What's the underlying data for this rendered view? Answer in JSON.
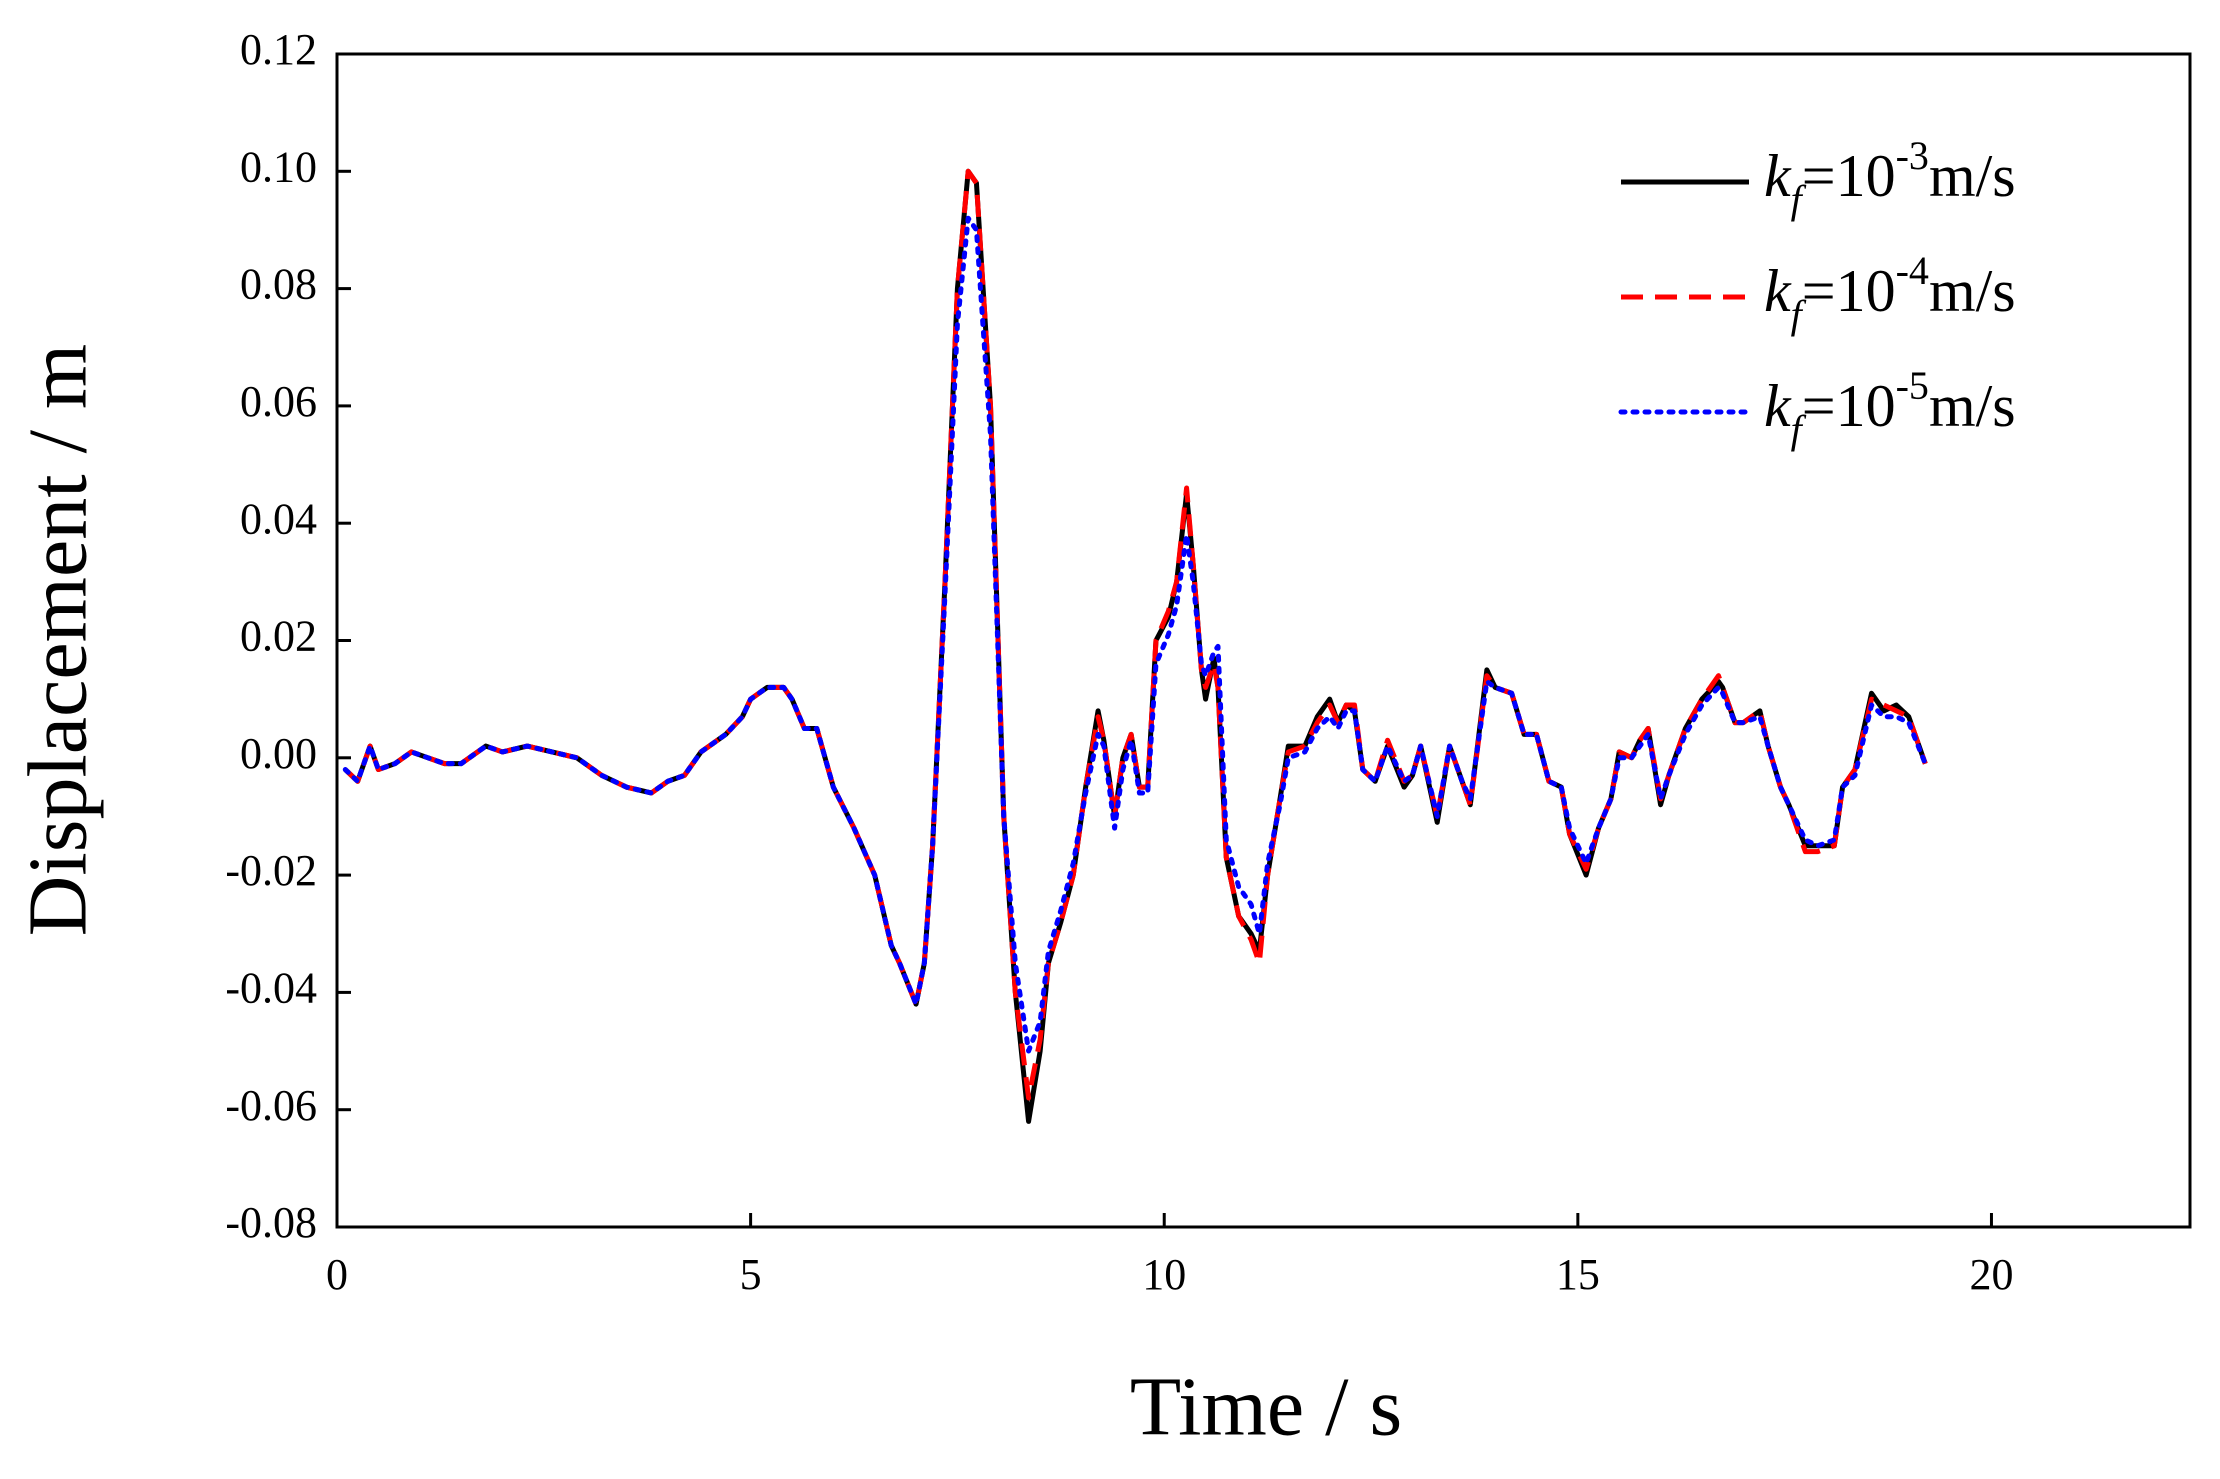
{
  "chart_data": {
    "type": "line",
    "xlabel": "Time / s",
    "ylabel": "Displacement / m",
    "x": [
      0.1,
      0.25,
      0.4,
      0.5,
      0.7,
      0.9,
      1.1,
      1.3,
      1.5,
      1.8,
      2.0,
      2.3,
      2.6,
      2.9,
      3.2,
      3.5,
      3.8,
      4.0,
      4.2,
      4.4,
      4.7,
      4.9,
      5.0,
      5.2,
      5.4,
      5.5,
      5.65,
      5.8,
      6.0,
      6.25,
      6.5,
      6.7,
      6.8,
      7.0,
      7.1,
      7.2,
      7.35,
      7.5,
      7.63,
      7.73,
      7.9,
      8.06,
      8.2,
      8.36,
      8.5,
      8.6,
      8.75,
      8.9,
      9.05,
      9.2,
      9.27,
      9.4,
      9.5,
      9.6,
      9.7,
      9.8,
      9.9,
      10.05,
      10.15,
      10.27,
      10.35,
      10.45,
      10.5,
      10.6,
      10.65,
      10.75,
      10.9,
      11.05,
      11.15,
      11.25,
      11.4,
      11.5,
      11.7,
      11.85,
      12.0,
      12.1,
      12.2,
      12.3,
      12.4,
      12.55,
      12.7,
      12.9,
      13.0,
      13.1,
      13.3,
      13.45,
      13.6,
      13.7,
      13.9,
      14.0,
      14.2,
      14.35,
      14.5,
      14.65,
      14.8,
      14.9,
      15.1,
      15.25,
      15.4,
      15.5,
      15.65,
      15.75,
      15.85,
      16.0,
      16.1,
      16.3,
      16.5,
      16.7,
      16.75,
      16.9,
      17.0,
      17.2,
      17.3,
      17.45,
      17.55,
      17.75,
      17.9,
      18.1,
      18.2,
      18.35,
      18.55,
      18.7,
      18.85,
      19.0,
      19.2
    ],
    "series": [
      {
        "name": "kf=10-3m/s",
        "color": "#000000",
        "line_style": "solid",
        "values": [
          -0.002,
          -0.004,
          0.002,
          -0.002,
          -0.001,
          0.001,
          0.0,
          -0.001,
          -0.001,
          0.002,
          0.001,
          0.002,
          0.001,
          0.0,
          -0.003,
          -0.005,
          -0.006,
          -0.004,
          -0.003,
          0.001,
          0.004,
          0.007,
          0.01,
          0.012,
          0.012,
          0.01,
          0.005,
          0.005,
          -0.005,
          -0.012,
          -0.02,
          -0.032,
          -0.035,
          -0.042,
          -0.035,
          -0.015,
          0.03,
          0.08,
          0.1,
          0.098,
          0.06,
          -0.01,
          -0.04,
          -0.062,
          -0.05,
          -0.035,
          -0.028,
          -0.02,
          -0.005,
          0.008,
          0.003,
          -0.01,
          0.0,
          0.004,
          -0.005,
          -0.005,
          0.02,
          0.024,
          0.03,
          0.045,
          0.033,
          0.015,
          0.01,
          0.017,
          0.012,
          -0.017,
          -0.027,
          -0.03,
          -0.033,
          -0.02,
          -0.007,
          0.002,
          0.002,
          0.007,
          0.01,
          0.006,
          0.009,
          0.008,
          -0.002,
          -0.004,
          0.002,
          -0.005,
          -0.003,
          0.002,
          -0.011,
          0.002,
          -0.004,
          -0.008,
          0.015,
          0.012,
          0.011,
          0.004,
          0.004,
          -0.004,
          -0.005,
          -0.013,
          -0.02,
          -0.012,
          -0.007,
          0.001,
          0.0,
          0.003,
          0.005,
          -0.008,
          -0.003,
          0.005,
          0.01,
          0.013,
          0.012,
          0.006,
          0.006,
          0.008,
          0.002,
          -0.005,
          -0.008,
          -0.015,
          -0.015,
          -0.015,
          -0.005,
          -0.002,
          0.011,
          0.008,
          0.009,
          0.007,
          -0.001
        ]
      },
      {
        "name": "kf=10-4m/s",
        "color": "#ff0000",
        "line_style": "dashed",
        "values": [
          -0.002,
          -0.004,
          0.002,
          -0.002,
          -0.001,
          0.001,
          0.0,
          -0.001,
          -0.001,
          0.002,
          0.001,
          0.002,
          0.001,
          0.0,
          -0.003,
          -0.005,
          -0.006,
          -0.004,
          -0.003,
          0.001,
          0.004,
          0.007,
          0.01,
          0.012,
          0.012,
          0.01,
          0.005,
          0.005,
          -0.005,
          -0.012,
          -0.02,
          -0.032,
          -0.035,
          -0.042,
          -0.035,
          -0.015,
          0.03,
          0.08,
          0.1,
          0.098,
          0.06,
          -0.01,
          -0.04,
          -0.058,
          -0.048,
          -0.035,
          -0.028,
          -0.02,
          -0.005,
          0.007,
          0.003,
          -0.01,
          0.0,
          0.004,
          -0.005,
          -0.005,
          0.02,
          0.025,
          0.03,
          0.046,
          0.033,
          0.015,
          0.012,
          0.016,
          0.012,
          -0.017,
          -0.027,
          -0.031,
          -0.035,
          -0.02,
          -0.007,
          0.001,
          0.002,
          0.006,
          0.009,
          0.006,
          0.009,
          0.009,
          -0.002,
          -0.004,
          0.003,
          -0.004,
          -0.003,
          0.002,
          -0.01,
          0.002,
          -0.004,
          -0.008,
          0.014,
          0.012,
          0.011,
          0.004,
          0.004,
          -0.004,
          -0.005,
          -0.013,
          -0.019,
          -0.012,
          -0.007,
          0.001,
          0.0,
          0.003,
          0.005,
          -0.007,
          -0.003,
          0.005,
          0.01,
          0.014,
          0.012,
          0.006,
          0.006,
          0.008,
          0.002,
          -0.005,
          -0.008,
          -0.016,
          -0.016,
          -0.015,
          -0.005,
          -0.002,
          0.01,
          0.009,
          0.008,
          0.007,
          -0.001
        ]
      },
      {
        "name": "kf=10-5m/s",
        "color": "#0000ff",
        "line_style": "dotted",
        "values": [
          -0.002,
          -0.004,
          0.002,
          -0.002,
          -0.001,
          0.001,
          0.0,
          -0.001,
          -0.001,
          0.002,
          0.001,
          0.002,
          0.001,
          0.0,
          -0.003,
          -0.005,
          -0.006,
          -0.004,
          -0.003,
          0.001,
          0.004,
          0.007,
          0.01,
          0.012,
          0.012,
          0.01,
          0.005,
          0.005,
          -0.005,
          -0.012,
          -0.02,
          -0.032,
          -0.035,
          -0.042,
          -0.035,
          -0.015,
          0.028,
          0.074,
          0.092,
          0.09,
          0.055,
          -0.01,
          -0.035,
          -0.05,
          -0.045,
          -0.033,
          -0.026,
          -0.018,
          -0.006,
          0.004,
          0.002,
          -0.012,
          -0.002,
          0.003,
          -0.006,
          -0.006,
          0.016,
          0.021,
          0.026,
          0.038,
          0.03,
          0.016,
          0.014,
          0.018,
          0.019,
          -0.014,
          -0.022,
          -0.025,
          -0.03,
          -0.018,
          -0.008,
          0.0,
          0.001,
          0.005,
          0.007,
          0.005,
          0.008,
          0.008,
          -0.002,
          -0.004,
          0.002,
          -0.004,
          -0.003,
          0.002,
          -0.01,
          0.002,
          -0.004,
          -0.007,
          0.013,
          0.012,
          0.011,
          0.004,
          0.004,
          -0.004,
          -0.005,
          -0.012,
          -0.018,
          -0.012,
          -0.007,
          0.0,
          0.0,
          0.002,
          0.004,
          -0.007,
          -0.003,
          0.004,
          0.009,
          0.012,
          0.011,
          0.006,
          0.006,
          0.007,
          0.002,
          -0.005,
          -0.008,
          -0.014,
          -0.015,
          -0.014,
          -0.005,
          -0.003,
          0.009,
          0.007,
          0.007,
          0.006,
          -0.001
        ]
      }
    ],
    "xlim": [
      0,
      22.4
    ],
    "xticks": [
      0,
      5,
      10,
      15,
      20
    ],
    "ylim": [
      -0.08,
      0.12
    ],
    "yticks": [
      {
        "value": -0.08,
        "label": "-0.08"
      },
      {
        "value": -0.06,
        "label": "-0.06"
      },
      {
        "value": -0.04,
        "label": "-0.04"
      },
      {
        "value": -0.02,
        "label": "-0.02"
      },
      {
        "value": 0,
        "label": "0.00"
      },
      {
        "value": 0.02,
        "label": "0.02"
      },
      {
        "value": 0.04,
        "label": "0.04"
      },
      {
        "value": 0.06,
        "label": "0.06"
      },
      {
        "value": 0.08,
        "label": "0.08"
      },
      {
        "value": 0.1,
        "label": "0.10"
      },
      {
        "value": 0.12,
        "label": "0.12"
      }
    ],
    "grid": false,
    "legend": "upper right"
  }
}
